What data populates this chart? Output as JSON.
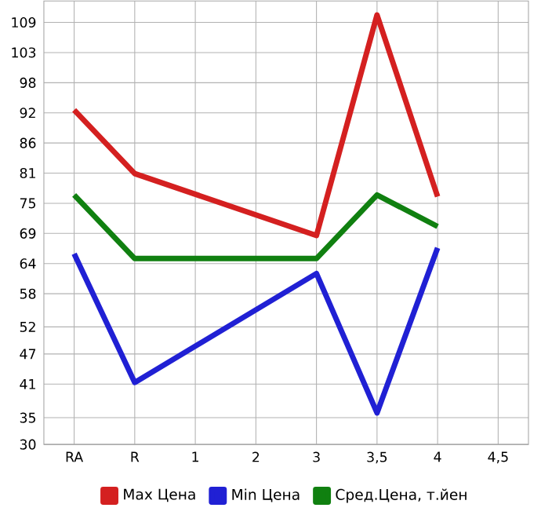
{
  "chart_data": {
    "type": "line",
    "categories": [
      "RA",
      "R",
      "1",
      "2",
      "3",
      "3,5",
      "4",
      "4,5"
    ],
    "series": [
      {
        "name": "Max Цена",
        "color": "#d42020",
        "values": [
          92.6,
          80.7,
          null,
          null,
          69.1,
          110.4,
          76.4,
          null
        ]
      },
      {
        "name": "Min Цена",
        "color": "#2020d4",
        "values": [
          65.7,
          41.6,
          null,
          null,
          62,
          35.9,
          66.8,
          null
        ]
      },
      {
        "name": "Сред.Цена, т.йен",
        "color": "#108010",
        "values": [
          76.7,
          64.8,
          null,
          null,
          64.8,
          76.7,
          70.8,
          null
        ]
      }
    ],
    "ylim": [
      30,
      113
    ],
    "yticks": [
      30,
      35,
      {
        "value": 41.29,
        "label": "41"
      },
      {
        "value": 46.93,
        "label": "47"
      },
      52,
      {
        "value": 58.21,
        "label": "58"
      },
      {
        "value": 63.86,
        "label": "64"
      },
      {
        "value": 69.5,
        "label": "69"
      },
      {
        "value": 75.14,
        "label": "75"
      },
      {
        "value": 80.79,
        "label": "81"
      },
      {
        "value": 86.43,
        "label": "86"
      },
      {
        "value": 92.07,
        "label": "92"
      },
      {
        "value": 97.71,
        "label": "98"
      },
      {
        "value": 103.36,
        "label": "103"
      },
      109
    ],
    "grid": true,
    "legend": "bottom",
    "marker": "none",
    "line_style": "solid"
  }
}
